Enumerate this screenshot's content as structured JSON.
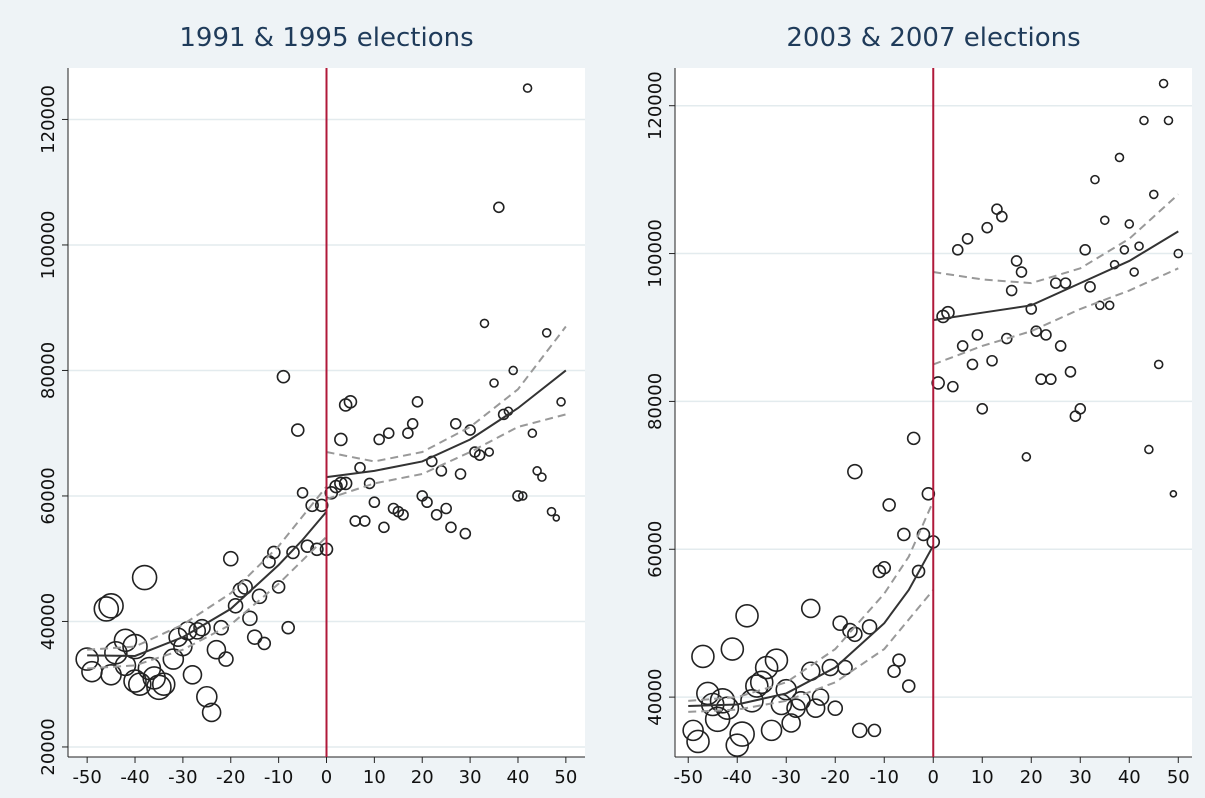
{
  "chart_data": [
    {
      "type": "scatter",
      "title": "1991 & 1995 elections",
      "xlim": [
        -54,
        54
      ],
      "ylim": [
        18400,
        128200
      ],
      "xticks": [
        -50,
        -40,
        -30,
        -20,
        -10,
        0,
        10,
        20,
        30,
        40,
        50
      ],
      "yticks": [
        20000,
        40000,
        60000,
        80000,
        100000,
        120000
      ],
      "grid": true,
      "point_color": "#222222",
      "vline": {
        "x": 0,
        "color": "#b0193a"
      },
      "points": {
        "x": [
          -50,
          -49,
          -46,
          -45,
          -45,
          -44,
          -42,
          -42,
          -40,
          -40,
          -39,
          -38,
          -37,
          -36,
          -35,
          -34,
          -32,
          -31,
          -30,
          -29,
          -27,
          -28,
          -26,
          -25,
          -24,
          -23,
          -22,
          -21,
          -20,
          -19,
          -18,
          -17,
          -16,
          -15,
          -14,
          -13,
          -12,
          -11,
          -10,
          -8,
          -9,
          -7,
          -6,
          -5,
          -4,
          -3,
          -2,
          -1,
          0,
          1,
          2,
          3,
          3,
          4,
          4,
          5,
          6,
          7,
          8,
          9,
          10,
          11,
          12,
          13,
          14,
          15,
          16,
          17,
          18,
          19,
          20,
          21,
          22,
          23,
          24,
          25,
          26,
          27,
          28,
          29,
          30,
          31,
          32,
          33,
          34,
          35,
          36,
          37,
          38,
          39,
          40,
          41,
          42,
          43,
          44,
          45,
          46,
          47,
          48,
          49
        ],
        "y": [
          34000,
          32000,
          42000,
          42500,
          31500,
          35000,
          37000,
          33000,
          36000,
          30500,
          30000,
          47000,
          32500,
          31000,
          29500,
          30000,
          34000,
          37500,
          36000,
          38500,
          38500,
          31500,
          39000,
          28000,
          25500,
          35500,
          39000,
          34000,
          50000,
          42500,
          45000,
          45500,
          40500,
          37500,
          44000,
          36500,
          49500,
          51000,
          45500,
          39000,
          79000,
          51000,
          70500,
          60500,
          52000,
          58500,
          51500,
          58500,
          51500,
          60500,
          61500,
          69000,
          62000,
          62000,
          74500,
          75000,
          56000,
          64500,
          56000,
          62000,
          59000,
          69000,
          55000,
          70000,
          58000,
          57500,
          57000,
          70000,
          71500,
          75000,
          60000,
          59000,
          65500,
          57000,
          64000,
          58000,
          55000,
          71500,
          63500,
          54000,
          70500,
          67000,
          66500,
          87500,
          67000,
          78000,
          106000,
          73000,
          73500,
          80000,
          60000,
          60000,
          125000,
          70000,
          64000,
          63000,
          86000,
          57500,
          56500,
          75000
        ],
        "sizes": [
          11,
          10,
          12,
          12,
          10,
          11,
          11,
          10,
          12,
          11,
          11,
          12,
          11,
          11,
          12,
          11,
          10,
          9,
          9,
          9,
          8,
          9,
          8,
          10,
          9,
          9,
          7,
          7,
          7,
          7,
          7,
          7,
          7,
          7,
          7,
          6,
          6,
          6,
          6,
          6,
          6,
          6,
          6,
          5,
          6,
          6,
          6,
          6,
          6,
          6,
          6,
          6,
          6,
          6,
          6,
          6,
          5,
          5,
          5,
          5,
          5,
          5,
          5,
          5,
          5,
          5,
          5,
          5,
          5,
          5,
          5,
          5,
          5,
          5,
          5,
          5,
          5,
          5,
          5,
          5,
          5,
          5,
          5,
          4,
          4,
          4,
          5,
          5,
          4,
          4,
          5,
          4,
          4,
          4,
          4,
          4,
          4,
          4,
          3,
          4
        ]
      },
      "lines": [
        {
          "x": [
            -50,
            -40,
            -30,
            -20,
            -10,
            -5,
            0
          ],
          "y": [
            34600,
            34500,
            37500,
            42000,
            49000,
            53000,
            57500
          ],
          "color": "#333333",
          "dash": false
        },
        {
          "x": [
            -50,
            -40,
            -30,
            -20,
            -10,
            0
          ],
          "y": [
            35500,
            36000,
            39500,
            44500,
            52000,
            61500
          ],
          "color": "#999999",
          "dash": true
        },
        {
          "x": [
            -50,
            -40,
            -30,
            -20,
            -10,
            0
          ],
          "y": [
            32500,
            33000,
            35500,
            39500,
            46000,
            53500
          ],
          "color": "#999999",
          "dash": true
        },
        {
          "x": [
            0,
            10,
            20,
            30,
            40,
            50
          ],
          "y": [
            63000,
            64000,
            65500,
            69000,
            74000,
            80000
          ],
          "color": "#333333",
          "dash": false
        },
        {
          "x": [
            0,
            10,
            20,
            30,
            40,
            50
          ],
          "y": [
            67000,
            65500,
            67000,
            71000,
            77000,
            87000
          ],
          "color": "#999999",
          "dash": true
        },
        {
          "x": [
            0,
            10,
            20,
            30,
            40,
            50
          ],
          "y": [
            59500,
            62000,
            63500,
            67000,
            71000,
            73000
          ],
          "color": "#999999",
          "dash": true
        }
      ]
    },
    {
      "type": "scatter",
      "title": "2003 & 2007 elections",
      "xlim": [
        -52.7,
        52.8
      ],
      "ylim": [
        31900,
        125100
      ],
      "xticks": [
        -50,
        -40,
        -30,
        -20,
        -10,
        0,
        10,
        20,
        30,
        40,
        50
      ],
      "yticks": [
        40000,
        60000,
        80000,
        100000,
        120000
      ],
      "grid": true,
      "point_color": "#222222",
      "vline": {
        "x": 0,
        "color": "#b0193a"
      },
      "points": {
        "x": [
          -49,
          -48,
          -47,
          -46,
          -45,
          -44,
          -43,
          -42,
          -41,
          -40,
          -39,
          -38,
          -37,
          -36,
          -35,
          -34,
          -33,
          -32,
          -31,
          -30,
          -29,
          -28,
          -27,
          -25,
          -25,
          -24,
          -23,
          -21,
          -20,
          -19,
          -18,
          -17,
          -16,
          -16,
          -15,
          -13,
          -12,
          -11,
          -10,
          -9,
          -8,
          -7,
          -6,
          -5,
          -4,
          -3,
          -2,
          -1,
          0,
          1,
          2,
          3,
          4,
          5,
          6,
          7,
          8,
          9,
          10,
          11,
          12,
          13,
          14,
          15,
          16,
          17,
          18,
          19,
          20,
          21,
          22,
          23,
          24,
          25,
          26,
          27,
          28,
          29,
          30,
          31,
          32,
          33,
          34,
          35,
          36,
          37,
          38,
          39,
          40,
          41,
          42,
          43,
          44,
          45,
          46,
          47,
          48,
          49,
          50
        ],
        "y": [
          35500,
          34000,
          45500,
          40500,
          39000,
          37000,
          39500,
          38500,
          46500,
          33500,
          35000,
          51000,
          39500,
          41500,
          42000,
          44000,
          35500,
          45000,
          39000,
          41000,
          36500,
          38500,
          39500,
          52000,
          43500,
          38500,
          40000,
          44000,
          38500,
          50000,
          44000,
          49000,
          48500,
          70500,
          35500,
          49500,
          35500,
          57000,
          57500,
          66000,
          43500,
          45000,
          62000,
          41500,
          75000,
          57000,
          62000,
          67500,
          61000,
          82500,
          91500,
          92000,
          82000,
          100500,
          87500,
          102000,
          85000,
          89000,
          79000,
          103500,
          85500,
          106000,
          105000,
          88500,
          95000,
          99000,
          97500,
          72500,
          92500,
          89500,
          83000,
          89000,
          83000,
          96000,
          87500,
          96000,
          84000,
          78000,
          79000,
          100500,
          95500,
          110000,
          93000,
          104500,
          93000,
          98500,
          113000,
          100500,
          104000,
          97500,
          101000,
          118000,
          73500,
          108000,
          85000,
          123000,
          118000,
          67500,
          100000
        ],
        "sizes": [
          10,
          11,
          11,
          11,
          11,
          12,
          12,
          11,
          11,
          11,
          12,
          11,
          11,
          11,
          11,
          11,
          10,
          11,
          10,
          10,
          9,
          9,
          9,
          9,
          9,
          9,
          8,
          8,
          7,
          7,
          7,
          7,
          7,
          7,
          7,
          7,
          6,
          6,
          6,
          6,
          6,
          6,
          6,
          6,
          6,
          6,
          6,
          6,
          6,
          6,
          6,
          6,
          5,
          5,
          5,
          5,
          5,
          5,
          5,
          5,
          5,
          5,
          5,
          5,
          5,
          5,
          5,
          4,
          5,
          5,
          5,
          5,
          5,
          5,
          5,
          5,
          5,
          5,
          5,
          5,
          5,
          4,
          4,
          4,
          4,
          4,
          4,
          4,
          4,
          4,
          4,
          4,
          4,
          4,
          4,
          4,
          4,
          3,
          4
        ]
      },
      "lines": [
        {
          "x": [
            -50,
            -40,
            -30,
            -20,
            -10,
            -5,
            0
          ],
          "y": [
            38800,
            39000,
            40500,
            44000,
            50000,
            54500,
            60500
          ],
          "color": "#333333",
          "dash": false
        },
        {
          "x": [
            -50,
            -40,
            -30,
            -20,
            -10,
            -5,
            0
          ],
          "y": [
            39500,
            40000,
            42000,
            46500,
            54000,
            59000,
            66500
          ],
          "color": "#999999",
          "dash": true
        },
        {
          "x": [
            -50,
            -40,
            -30,
            -20,
            -10,
            -5,
            0
          ],
          "y": [
            38000,
            38300,
            39500,
            42000,
            46500,
            50500,
            54500
          ],
          "color": "#999999",
          "dash": true
        },
        {
          "x": [
            0,
            10,
            20,
            30,
            40,
            50
          ],
          "y": [
            91000,
            92000,
            93000,
            96000,
            99000,
            103000
          ],
          "color": "#333333",
          "dash": false
        },
        {
          "x": [
            0,
            10,
            20,
            30,
            40,
            50
          ],
          "y": [
            97500,
            96500,
            96000,
            98000,
            102000,
            108000
          ],
          "color": "#999999",
          "dash": true
        },
        {
          "x": [
            0,
            10,
            20,
            30,
            40,
            50
          ],
          "y": [
            85000,
            87500,
            89500,
            92500,
            95000,
            98000
          ],
          "color": "#999999",
          "dash": true
        }
      ]
    }
  ]
}
